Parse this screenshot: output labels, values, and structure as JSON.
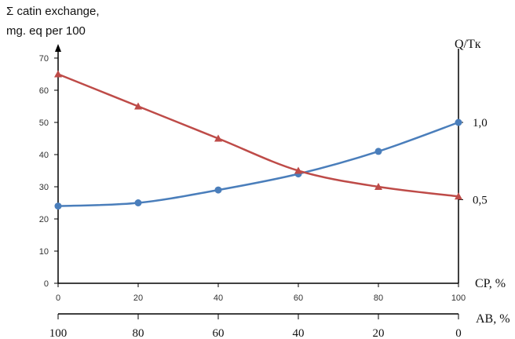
{
  "chart_data": {
    "type": "line",
    "ylabel_lines": [
      "Σ catin exchange,",
      "mg. eq per 100"
    ],
    "right_axis_label": "Q/Tк",
    "right_ticks": [
      "1,0",
      "0,5"
    ],
    "xlabel": "CP, %",
    "x2label": "AB, %",
    "x": [
      0,
      20,
      40,
      60,
      80,
      100
    ],
    "x_ticks": [
      "0",
      "20",
      "40",
      "60",
      "80",
      "100"
    ],
    "x2_ticks": [
      "100",
      "80",
      "60",
      "40",
      "20",
      "0"
    ],
    "y_ticks": [
      "0",
      "10",
      "20",
      "30",
      "40",
      "50",
      "60",
      "70"
    ],
    "ylim": [
      0,
      70
    ],
    "xlim": [
      0,
      100
    ],
    "series": [
      {
        "marker": "circle",
        "color": "#4a7ebb",
        "values": [
          24,
          25,
          29,
          34,
          41,
          50
        ]
      },
      {
        "marker": "triangle",
        "color": "#be4b48",
        "values": [
          65,
          55,
          45,
          35,
          30,
          27
        ]
      }
    ]
  }
}
